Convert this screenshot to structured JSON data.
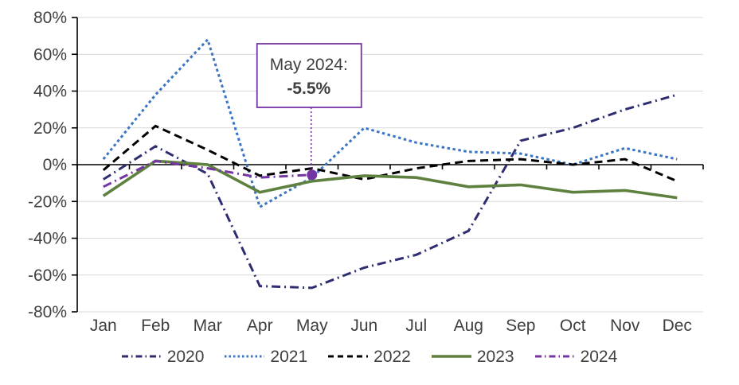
{
  "chart_data": {
    "type": "line",
    "categories": [
      "Jan",
      "Feb",
      "Mar",
      "Apr",
      "May",
      "Jun",
      "Jul",
      "Aug",
      "Sep",
      "Oct",
      "Nov",
      "Dec"
    ],
    "series": [
      {
        "name": "2020",
        "color": "#2E2D72",
        "dash": "dash-dot",
        "values": [
          -8,
          10,
          -5,
          -66,
          -67,
          -56,
          -49,
          -36,
          13,
          20,
          30,
          38
        ]
      },
      {
        "name": "2021",
        "color": "#3A75C4",
        "dash": "dot",
        "values": [
          3,
          38,
          68,
          -23,
          -7,
          20,
          12,
          7,
          6,
          0,
          9,
          3
        ]
      },
      {
        "name": "2022",
        "color": "#000000",
        "dash": "dash",
        "values": [
          -3,
          21,
          8,
          -6,
          -2,
          -8,
          -2,
          2,
          3,
          0,
          3,
          -9
        ]
      },
      {
        "name": "2023",
        "color": "#5F8140",
        "dash": "solid",
        "values": [
          -17,
          2,
          0,
          -15,
          -9,
          -6,
          -7,
          -12,
          -11,
          -15,
          -14,
          -18
        ]
      },
      {
        "name": "2024",
        "color": "#7434A4",
        "dash": "dash-dot",
        "values": [
          -12,
          2,
          -2,
          -7,
          -5.5
        ]
      }
    ],
    "title": "",
    "xlabel": "",
    "ylabel": "",
    "ylim": [
      -80,
      80
    ],
    "y_tick_step": 20,
    "y_tick_labels": [
      "80%",
      "60%",
      "40%",
      "20%",
      "0%",
      "-20%",
      "-40%",
      "-60%",
      "-80%"
    ],
    "grid": true,
    "legend_position": "bottom",
    "annotation": {
      "line1": "May 2024:",
      "line2": "-5.5%",
      "target_series": "2024",
      "target_category": "May",
      "target_value": -5.5,
      "box_border_color": "#7434A4",
      "marker_color": "#7434A4"
    }
  },
  "styles": {
    "axis_text_color": "#404040",
    "gridline_color": "#D9D9D9",
    "axis_line_color": "#000000",
    "background": "#FFFFFF"
  }
}
